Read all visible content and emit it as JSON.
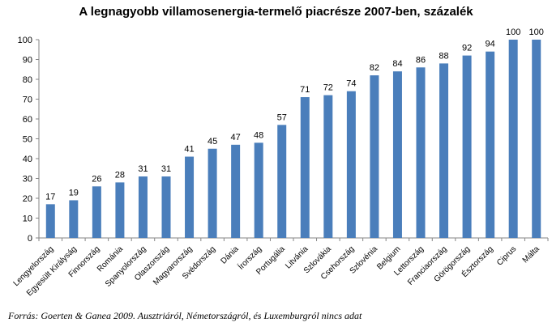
{
  "chart_data": {
    "type": "bar",
    "title": "A legnagyobb villamosenergia-termelő piacrésze 2007-ben, százalék",
    "xlabel": "",
    "ylabel": "",
    "ylim": [
      0,
      100
    ],
    "ytick_step": 10,
    "grid": false,
    "legend": "none",
    "bar_color": "#4a7ebb",
    "categories": [
      "Lengyelország",
      "Egyesült Királyság",
      "Finnország",
      "Románia",
      "Spanyolország",
      "Olaszország",
      "Magyarország",
      "Svédország",
      "Dánia",
      "Írország",
      "Portugália",
      "Litvánia",
      "Szlovákia",
      "Csehország",
      "Szlovénia",
      "Belgium",
      "Lettország",
      "Franciaország",
      "Görögország",
      "Észtország",
      "Ciprus",
      "Málta"
    ],
    "values": [
      17,
      19,
      26,
      28,
      31,
      31,
      41,
      45,
      47,
      48,
      57,
      71,
      72,
      74,
      82,
      84,
      86,
      88,
      92,
      94,
      100,
      100
    ],
    "source": "Forrás:  Goerten & Ganea 2009. Ausztriáról,  Németországról, és Luxemburgról nincs adat"
  }
}
